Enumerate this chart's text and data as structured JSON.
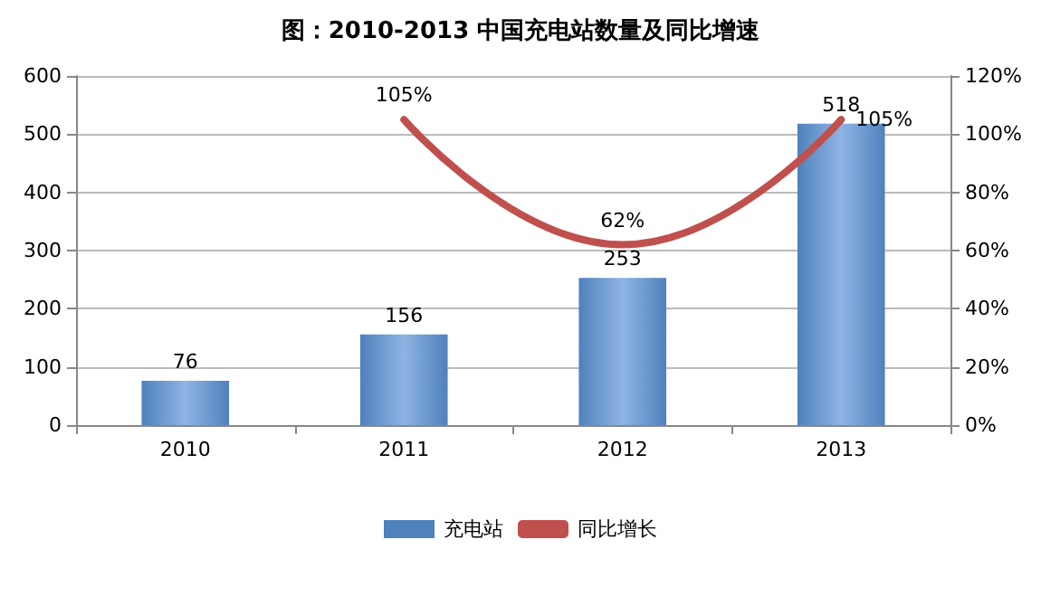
{
  "chart_data": {
    "type": "bar",
    "title": "图：2010-2013 中国充电站数量及同比增速",
    "categories": [
      "2010",
      "2011",
      "2012",
      "2013"
    ],
    "series": [
      {
        "name": "充电站",
        "color": "#4f81bd",
        "values": [
          76,
          156,
          253,
          518
        ],
        "value_labels": [
          "76",
          "156",
          "253",
          "518"
        ]
      },
      {
        "name": "同比增长",
        "type": "line",
        "axis": "y2",
        "color": "#c0504d",
        "values": [
          null,
          105,
          62,
          105
        ],
        "value_labels": [
          null,
          "105%",
          "62%",
          "105%"
        ]
      }
    ],
    "ylim": [
      0,
      600
    ],
    "yticks": [
      0,
      100,
      200,
      300,
      400,
      500,
      600
    ],
    "y2lim": [
      0,
      120
    ],
    "y2ticks": [
      {
        "value": 0,
        "label": "0%"
      },
      {
        "value": 20,
        "label": "20%"
      },
      {
        "value": 40,
        "label": "40%"
      },
      {
        "value": 60,
        "label": "60%"
      },
      {
        "value": 80,
        "label": "80%"
      },
      {
        "value": 100,
        "label": "100%"
      },
      {
        "value": 120,
        "label": "120%"
      }
    ],
    "grid": "y",
    "legend": "bottom",
    "marker": "none"
  }
}
